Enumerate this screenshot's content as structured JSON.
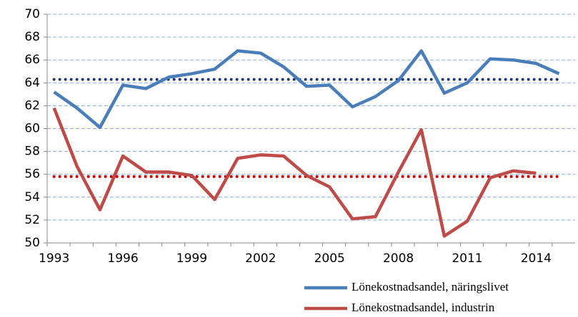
{
  "chart_data": {
    "type": "line",
    "categories": [
      "1993",
      null,
      null,
      "1996",
      null,
      null,
      "1999",
      null,
      null,
      "2002",
      null,
      null,
      "2005",
      null,
      null,
      "2008",
      null,
      null,
      "2011",
      null,
      null,
      "2014",
      null
    ],
    "series": [
      {
        "name": "Lönekostnadsandel, näringslivet",
        "color": "#4a7ebb",
        "values": [
          63.2,
          61.8,
          60.1,
          63.8,
          63.5,
          64.5,
          64.8,
          65.2,
          66.8,
          66.6,
          65.4,
          63.7,
          63.8,
          61.9,
          62.8,
          64.2,
          66.8,
          63.1,
          64.0,
          66.1,
          66.0,
          65.7,
          64.8
        ]
      },
      {
        "name": "Lönekostnadsandel, industrin",
        "color": "#be4b48",
        "values": [
          61.8,
          56.7,
          52.9,
          57.6,
          56.2,
          56.2,
          55.9,
          53.8,
          57.4,
          57.7,
          57.6,
          55.9,
          54.9,
          52.1,
          52.3,
          56.2,
          59.9,
          50.6,
          51.9,
          55.7,
          56.3,
          56.1,
          null
        ]
      }
    ],
    "reference_lines": [
      {
        "value": 64.3,
        "color": "#1f3864"
      },
      {
        "value": 55.8,
        "color": "#c00000"
      }
    ],
    "ylim": [
      50,
      70
    ],
    "yticks": [
      50,
      52,
      54,
      56,
      58,
      60,
      62,
      64,
      66,
      68,
      70
    ],
    "grid": true
  }
}
